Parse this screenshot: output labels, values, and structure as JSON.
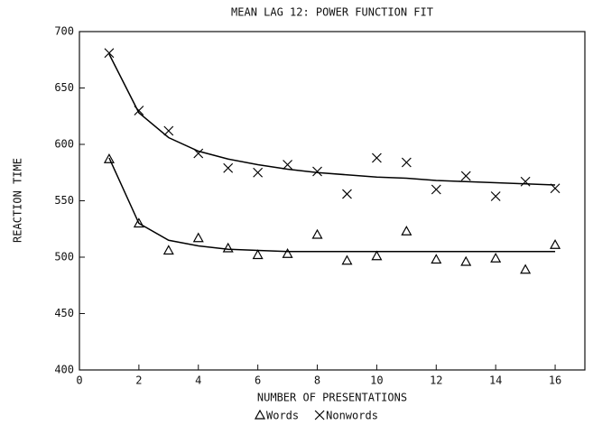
{
  "chart_data": {
    "type": "scatter",
    "title": "MEAN LAG 12: POWER FUNCTION FIT",
    "x_label": "NUMBER OF PRESENTATIONS",
    "y_label": "REACTION TIME",
    "x": [
      1,
      2,
      3,
      4,
      5,
      6,
      7,
      8,
      9,
      10,
      11,
      12,
      13,
      14,
      15,
      16
    ],
    "series": [
      {
        "name": "Words",
        "color": "#000000",
        "marker": "triangle",
        "values": [
          587,
          530,
          506,
          517,
          508,
          502,
          503,
          520,
          497,
          501,
          523,
          498,
          496,
          499,
          489,
          511
        ],
        "fit_values": [
          588,
          530,
          515,
          510,
          507,
          506,
          505,
          505,
          505,
          505,
          505,
          505,
          505,
          505,
          505,
          505
        ]
      },
      {
        "name": "Nonwords",
        "color": "#000000",
        "marker": "x",
        "values": [
          681,
          630,
          612,
          592,
          579,
          575,
          582,
          576,
          556,
          588,
          584,
          560,
          572,
          554,
          567,
          561
        ],
        "fit_values": [
          680,
          628,
          606,
          594,
          587,
          582,
          578,
          575,
          573,
          571,
          570,
          568,
          567,
          566,
          565,
          564
        ]
      }
    ],
    "xlim": [
      0,
      17
    ],
    "xticks": [
      0,
      2,
      4,
      6,
      8,
      10,
      12,
      14,
      16
    ],
    "ylim": [
      400,
      700
    ],
    "yticks": [
      400,
      450,
      500,
      550,
      600,
      650,
      700
    ]
  }
}
